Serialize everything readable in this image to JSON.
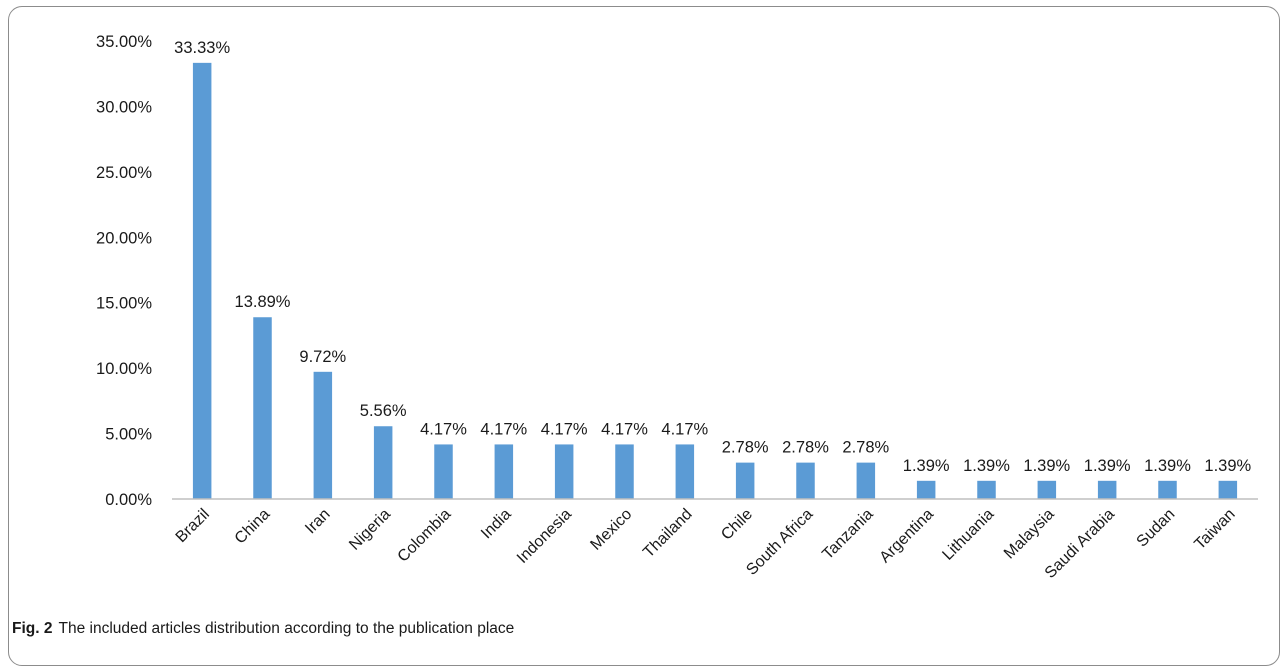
{
  "chart_data": {
    "type": "bar",
    "title": "",
    "xlabel": "",
    "ylabel": "",
    "categories": [
      "Brazil",
      "China",
      "Iran",
      "Nigeria",
      "Colombia",
      "India",
      "Indonesia",
      "Mexico",
      "Thailand",
      "Chile",
      "South Africa",
      "Tanzania",
      "Argentina",
      "Lithuania",
      "Malaysia",
      "Saudi Arabia",
      "Sudan",
      "Taiwan"
    ],
    "values": [
      33.33,
      13.89,
      9.72,
      5.56,
      4.17,
      4.17,
      4.17,
      4.17,
      4.17,
      2.78,
      2.78,
      2.78,
      1.39,
      1.39,
      1.39,
      1.39,
      1.39,
      1.39
    ],
    "data_labels": [
      "33.33%",
      "13.89%",
      "9.72%",
      "5.56%",
      "4.17%",
      "4.17%",
      "4.17%",
      "4.17%",
      "4.17%",
      "2.78%",
      "2.78%",
      "2.78%",
      "1.39%",
      "1.39%",
      "1.39%",
      "1.39%",
      "1.39%",
      "1.39%"
    ],
    "ylim": [
      0,
      35
    ],
    "yticks": [
      0,
      5,
      10,
      15,
      20,
      25,
      30,
      35
    ],
    "ytick_labels": [
      "0.00%",
      "5.00%",
      "10.00%",
      "15.00%",
      "20.00%",
      "25.00%",
      "30.00%",
      "35.00%"
    ],
    "grid": false,
    "bar_color": "#5b9bd5",
    "axis_color": "#bfbfbf"
  },
  "caption": {
    "label": "Fig. 2",
    "text": "The included articles distribution according to the publication place"
  }
}
